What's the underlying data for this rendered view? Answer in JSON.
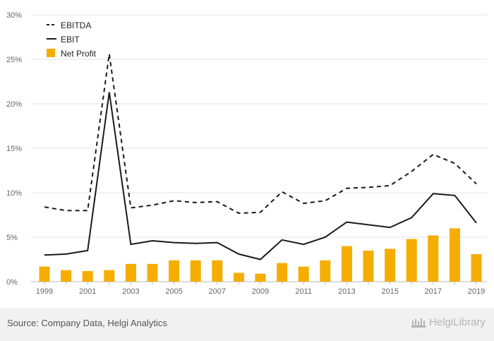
{
  "chart_data": {
    "type": "bar+line",
    "title": "",
    "xlabel": "",
    "ylabel": "",
    "ylim": [
      0,
      30
    ],
    "y_ticks": [
      "0%",
      "5%",
      "10%",
      "15%",
      "20%",
      "25%",
      "30%"
    ],
    "x_tick_labels": [
      "1999",
      "2001",
      "2003",
      "2005",
      "2007",
      "2009",
      "2011",
      "2013",
      "2015",
      "2017",
      "2019"
    ],
    "categories": [
      "1999",
      "2000",
      "2001",
      "2002",
      "2003",
      "2004",
      "2005",
      "2006",
      "2007",
      "2008",
      "2009",
      "2010",
      "2011",
      "2012",
      "2013",
      "2014",
      "2015",
      "2016",
      "2017",
      "2018",
      "2019"
    ],
    "series": [
      {
        "name": "EBITDA",
        "kind": "line",
        "style": "dashed",
        "values": [
          8.4,
          8.0,
          8.0,
          25.6,
          8.3,
          8.6,
          9.1,
          8.9,
          9.0,
          7.7,
          7.8,
          10.1,
          8.8,
          9.1,
          10.5,
          10.6,
          10.8,
          12.4,
          14.3,
          13.3,
          11.0
        ]
      },
      {
        "name": "EBIT",
        "kind": "line",
        "style": "solid",
        "values": [
          3.0,
          3.1,
          3.5,
          21.3,
          4.2,
          4.6,
          4.4,
          4.3,
          4.4,
          3.1,
          2.5,
          4.7,
          4.2,
          5.0,
          6.7,
          6.4,
          6.1,
          7.2,
          9.9,
          9.7,
          6.6
        ]
      },
      {
        "name": "Net Profit",
        "kind": "bar",
        "values": [
          1.7,
          1.3,
          1.2,
          1.3,
          2.0,
          2.0,
          2.4,
          2.4,
          2.4,
          1.0,
          0.9,
          2.1,
          1.7,
          2.4,
          4.0,
          3.5,
          3.7,
          4.8,
          5.2,
          6.0,
          3.1
        ]
      }
    ],
    "legend_position": "top-left",
    "colors": {
      "ebitda": "#1a1a1a",
      "ebit": "#1a1a1a",
      "net_profit": "#f5ad00",
      "grid": "#e3e3e3",
      "axis_text": "#666666"
    }
  },
  "footer": {
    "source": "Source: Company Data, Helgi Analytics",
    "brand": "HelgiLibrary"
  }
}
